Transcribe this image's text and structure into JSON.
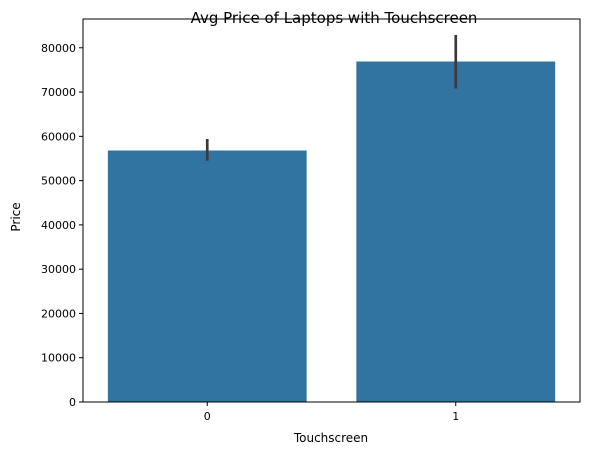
{
  "chart_data": {
    "type": "bar",
    "title": "Avg Price of Laptops with Touchscreen",
    "xlabel": "Touchscreen",
    "ylabel": "Price",
    "categories": [
      "0",
      "1"
    ],
    "values": [
      56800,
      76900
    ],
    "error_bars": [
      {
        "low": 54500,
        "high": 59400
      },
      {
        "low": 70800,
        "high": 82900
      }
    ],
    "ylim": [
      0,
      86500
    ],
    "yticks": [
      0,
      10000,
      20000,
      30000,
      40000,
      50000,
      60000,
      70000,
      80000
    ],
    "grid": false,
    "legend": "none",
    "bar_color": "#3274a1",
    "error_color": "#3b3b3b"
  }
}
